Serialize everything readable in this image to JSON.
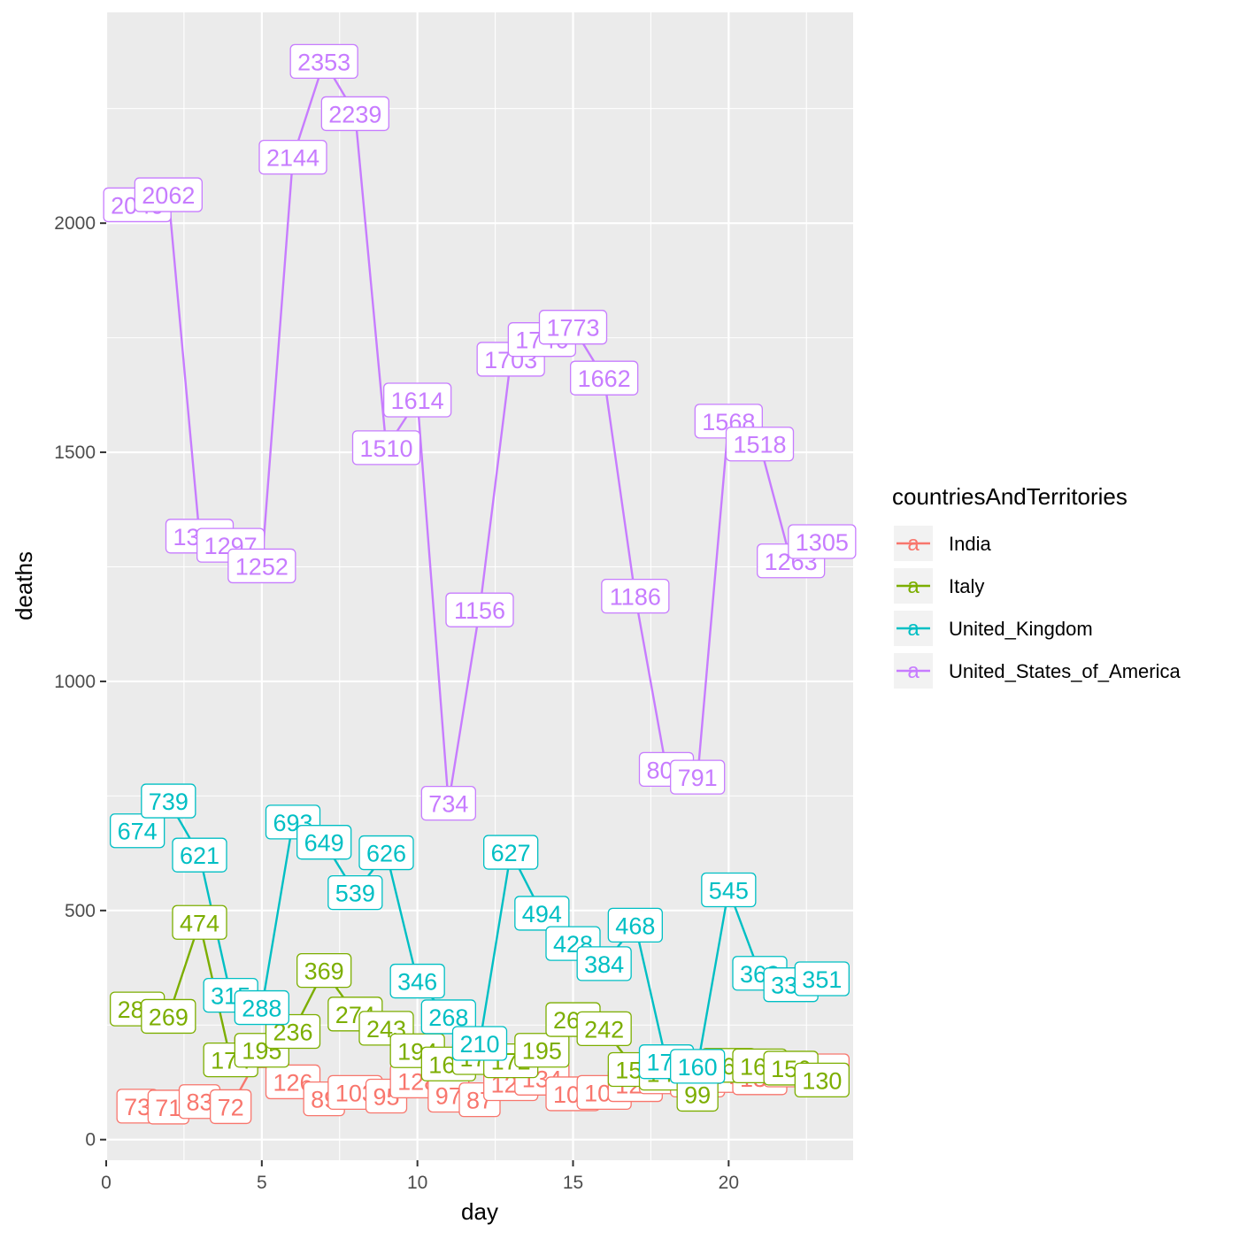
{
  "chart_data": {
    "type": "line",
    "xlabel": "day",
    "ylabel": "deaths",
    "xlim": [
      0,
      24
    ],
    "ylim": [
      -45,
      2460
    ],
    "x_ticks": [
      0,
      5,
      10,
      15,
      20
    ],
    "x_tick_labels": [
      "0",
      "5",
      "10",
      "15",
      "20"
    ],
    "y_ticks": [
      0,
      500,
      1000,
      1500,
      2000
    ],
    "y_tick_labels": [
      "0",
      "500",
      "1000",
      "1500",
      "2000"
    ],
    "grid": true,
    "legend": {
      "title": "countriesAndTerritories",
      "position": "right",
      "key_glyph": "a"
    },
    "series": [
      {
        "name": "India",
        "color": "#F8766D",
        "x": [
          1,
          2,
          3,
          4,
          5,
          6,
          7,
          8,
          9,
          10,
          11,
          12,
          13,
          14,
          15,
          16,
          17,
          18,
          19,
          20,
          21,
          22,
          23
        ],
        "values": [
          73,
          71,
          83,
          72,
          194,
          126,
          89,
          103,
          95,
          128,
          97,
          87,
          122,
          134,
          100,
          103,
          120,
          137,
          130,
          140,
          135,
          152,
          150
        ]
      },
      {
        "name": "Italy",
        "color": "#7CAE00",
        "x": [
          1,
          2,
          3,
          4,
          5,
          6,
          7,
          8,
          9,
          10,
          11,
          12,
          13,
          14,
          15,
          16,
          17,
          18,
          19,
          20,
          21,
          22,
          23
        ],
        "values": [
          285,
          269,
          474,
          174,
          195,
          236,
          369,
          274,
          243,
          194,
          165,
          179,
          172,
          195,
          262,
          242,
          153,
          145,
          99,
          162,
          161,
          156,
          130
        ]
      },
      {
        "name": "United_Kingdom",
        "color": "#00BFC4",
        "x": [
          1,
          2,
          3,
          4,
          5,
          6,
          7,
          8,
          9,
          10,
          11,
          12,
          13,
          14,
          15,
          16,
          17,
          18,
          19,
          20,
          21,
          22,
          23
        ],
        "values": [
          674,
          739,
          621,
          315,
          288,
          693,
          649,
          539,
          626,
          346,
          268,
          210,
          627,
          494,
          428,
          384,
          468,
          170,
          160,
          545,
          363,
          338,
          351
        ]
      },
      {
        "name": "United_States_of_America",
        "color": "#C77CFF",
        "x": [
          1,
          2,
          3,
          4,
          5,
          6,
          7,
          8,
          9,
          10,
          11,
          12,
          13,
          14,
          15,
          16,
          17,
          18,
          19,
          20,
          21,
          22,
          23
        ],
        "values": [
          2040,
          2062,
          1317,
          1297,
          1252,
          2144,
          2353,
          2239,
          1510,
          1614,
          734,
          1156,
          1703,
          1746,
          1773,
          1662,
          1186,
          808,
          791,
          1568,
          1518,
          1263,
          1305
        ]
      }
    ]
  }
}
